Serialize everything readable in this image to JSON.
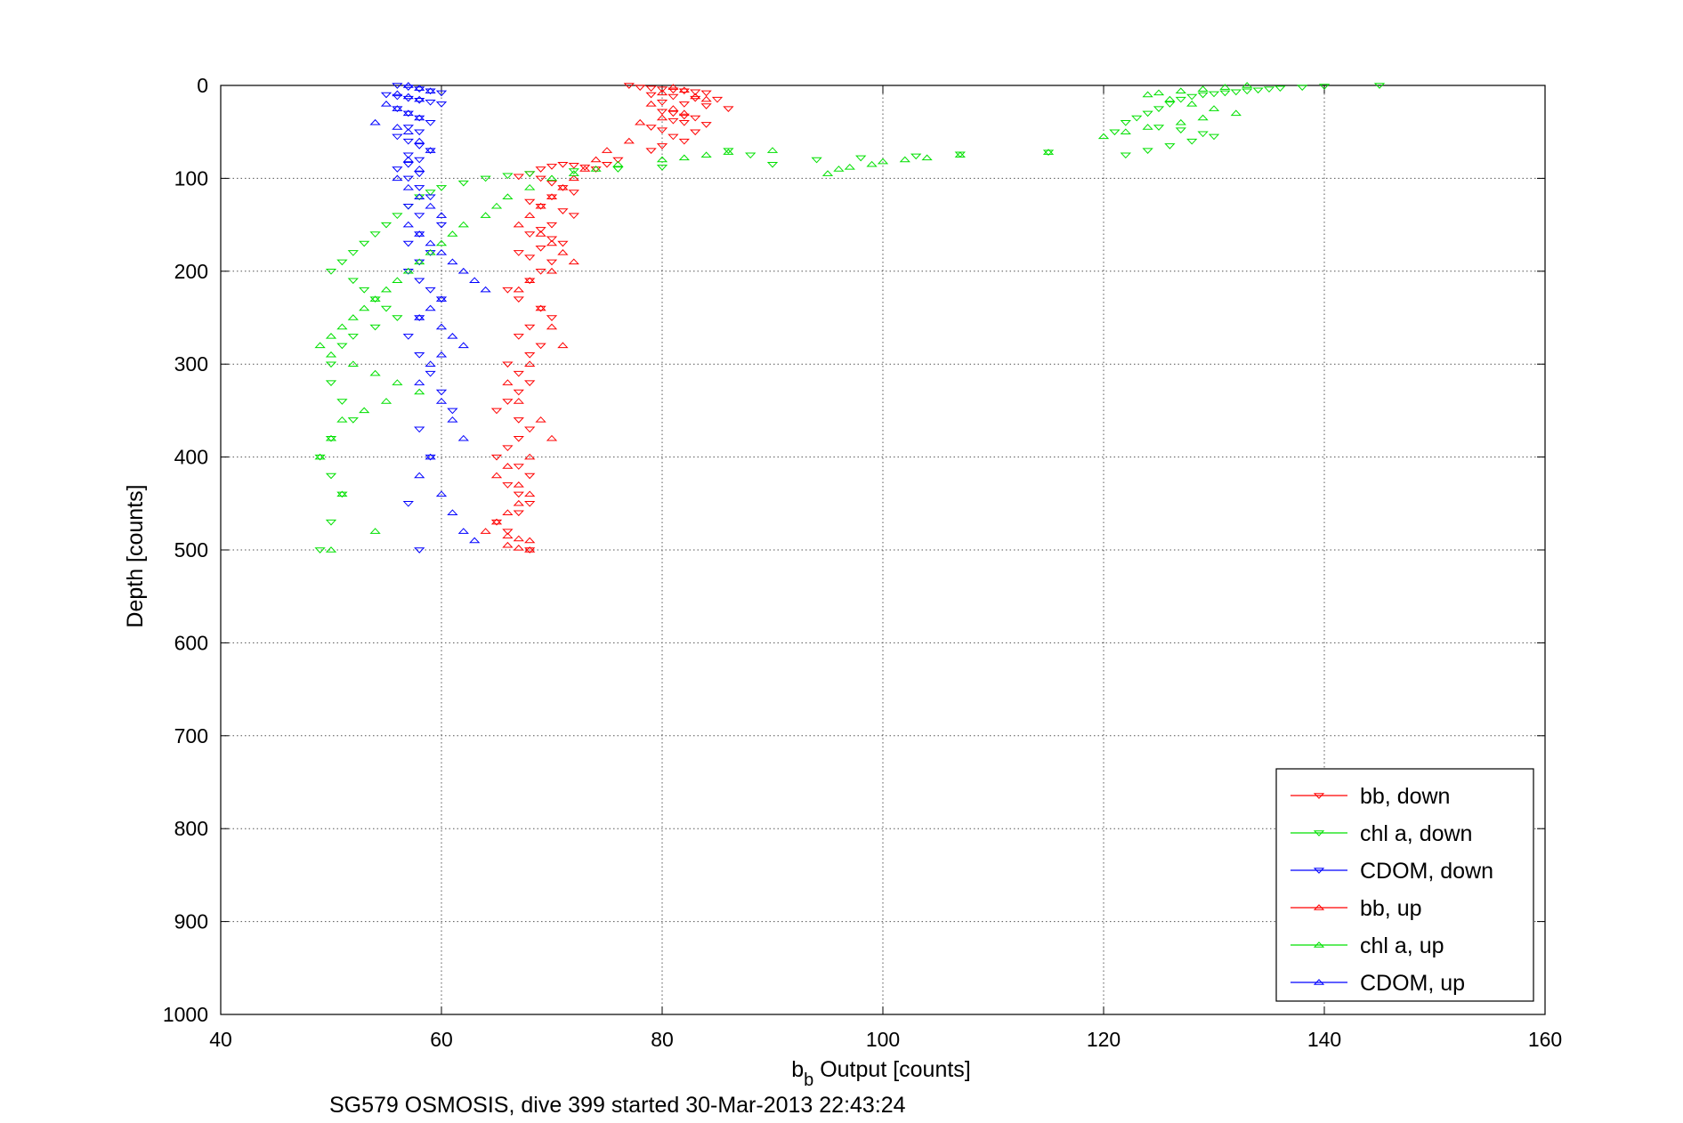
{
  "chart_data": {
    "type": "scatter",
    "xlabel_main": "b",
    "xlabel_sub": "b",
    "xlabel_rest": " Output [counts]",
    "ylabel": "Depth [counts]",
    "caption": "SG579 OSMOSIS, dive 399 started 30-Mar-2013 22:43:24",
    "xlim": [
      40,
      160
    ],
    "ylim": [
      0,
      1000
    ],
    "y_reversed": true,
    "xticks": [
      40,
      60,
      80,
      100,
      120,
      140,
      160
    ],
    "yticks": [
      0,
      100,
      200,
      300,
      400,
      500,
      600,
      700,
      800,
      900,
      1000
    ],
    "grid": true,
    "legend_position": "bottom-right",
    "series": [
      {
        "name": "bb, down",
        "color": "#ff0000",
        "marker": "triangle-down",
        "x": [
          77,
          78,
          79,
          80,
          81,
          82,
          83,
          84,
          79,
          81,
          83,
          85,
          80,
          82,
          84,
          86,
          80,
          81,
          82,
          83,
          81,
          82,
          84,
          79,
          80,
          83,
          81,
          82,
          80,
          79,
          76,
          75,
          74,
          73,
          72,
          71,
          70,
          69,
          68,
          67,
          69,
          70,
          71,
          72,
          70,
          68,
          69,
          71,
          72,
          70,
          69,
          68,
          70,
          71,
          69,
          67,
          68,
          70,
          69,
          68,
          66,
          67,
          69,
          70,
          68,
          67,
          69,
          68,
          66,
          67,
          68,
          67,
          66,
          65,
          67,
          68,
          67,
          66,
          65,
          67,
          68,
          66,
          67,
          68,
          67,
          65,
          66,
          68
        ],
        "y": [
          0,
          2,
          3,
          4,
          5,
          6,
          7,
          8,
          10,
          12,
          14,
          15,
          18,
          20,
          22,
          25,
          28,
          30,
          33,
          35,
          38,
          40,
          42,
          45,
          48,
          50,
          55,
          60,
          65,
          70,
          80,
          85,
          90,
          88,
          86,
          85,
          87,
          90,
          95,
          98,
          100,
          105,
          110,
          115,
          120,
          125,
          130,
          135,
          140,
          150,
          155,
          160,
          165,
          170,
          175,
          180,
          185,
          190,
          200,
          210,
          220,
          230,
          240,
          250,
          260,
          270,
          280,
          290,
          300,
          310,
          320,
          330,
          340,
          350,
          360,
          370,
          380,
          390,
          400,
          410,
          420,
          430,
          440,
          450,
          460,
          470,
          480,
          500
        ]
      },
      {
        "name": "chl a, down",
        "color": "#00e000",
        "marker": "triangle-down",
        "x": [
          145,
          140,
          138,
          136,
          135,
          134,
          133,
          132,
          131,
          130,
          129,
          128,
          127,
          126,
          125,
          124,
          123,
          122,
          121,
          130,
          128,
          126,
          124,
          122,
          125,
          127,
          129,
          115,
          107,
          103,
          98,
          94,
          90,
          88,
          86,
          80,
          76,
          72,
          68,
          66,
          64,
          62,
          60,
          59,
          58,
          57,
          56,
          55,
          54,
          53,
          52,
          51,
          50,
          52,
          53,
          54,
          55,
          56,
          54,
          52,
          51,
          50,
          50,
          51,
          52,
          50,
          49,
          50,
          51,
          50,
          49
        ],
        "y": [
          0,
          1,
          2,
          3,
          4,
          5,
          6,
          7,
          8,
          9,
          10,
          12,
          15,
          20,
          25,
          30,
          35,
          40,
          50,
          55,
          60,
          65,
          70,
          75,
          45,
          48,
          52,
          72,
          74,
          76,
          78,
          80,
          85,
          75,
          70,
          88,
          90,
          92,
          95,
          97,
          100,
          105,
          110,
          115,
          120,
          130,
          140,
          150,
          160,
          170,
          180,
          190,
          200,
          210,
          220,
          230,
          240,
          250,
          260,
          270,
          280,
          300,
          320,
          340,
          360,
          380,
          400,
          420,
          440,
          470,
          500
        ]
      },
      {
        "name": "CDOM, down",
        "color": "#0000ff",
        "marker": "triangle-down",
        "x": [
          56,
          57,
          58,
          59,
          60,
          55,
          56,
          57,
          58,
          59,
          60,
          56,
          57,
          58,
          59,
          57,
          58,
          56,
          57,
          58,
          59,
          57,
          58,
          57,
          56,
          58,
          57,
          58,
          59,
          57,
          58,
          60,
          58,
          57,
          59,
          58,
          57,
          58,
          59,
          60,
          58,
          57,
          58,
          59,
          60,
          61,
          58,
          59,
          57,
          58
        ],
        "y": [
          0,
          2,
          4,
          6,
          8,
          10,
          12,
          14,
          16,
          18,
          20,
          25,
          30,
          35,
          40,
          45,
          50,
          55,
          60,
          65,
          70,
          75,
          80,
          85,
          90,
          95,
          100,
          110,
          120,
          130,
          140,
          150,
          160,
          170,
          180,
          190,
          200,
          210,
          220,
          230,
          250,
          270,
          290,
          310,
          330,
          350,
          370,
          400,
          450,
          500
        ]
      },
      {
        "name": "bb, up",
        "color": "#ff0000",
        "marker": "triangle-up",
        "x": [
          81,
          82,
          80,
          83,
          84,
          79,
          81,
          82,
          80,
          78,
          77,
          75,
          74,
          73,
          72,
          71,
          70,
          69,
          68,
          67,
          69,
          70,
          71,
          72,
          70,
          68,
          67,
          69,
          70,
          71,
          68,
          66,
          67,
          69,
          70,
          68,
          66,
          65,
          67,
          68,
          67,
          66,
          65,
          64,
          66,
          67,
          68,
          66,
          67,
          68
        ],
        "y": [
          2,
          5,
          8,
          12,
          15,
          20,
          25,
          30,
          35,
          40,
          60,
          70,
          80,
          90,
          100,
          110,
          120,
          130,
          140,
          150,
          160,
          170,
          180,
          190,
          200,
          210,
          220,
          240,
          260,
          280,
          300,
          320,
          340,
          360,
          380,
          400,
          410,
          420,
          430,
          440,
          450,
          460,
          470,
          480,
          485,
          488,
          490,
          495,
          498,
          500
        ]
      },
      {
        "name": "chl a, up",
        "color": "#00e000",
        "marker": "triangle-up",
        "x": [
          133,
          131,
          129,
          127,
          125,
          124,
          126,
          128,
          130,
          132,
          129,
          127,
          124,
          122,
          120,
          115,
          107,
          104,
          102,
          100,
          99,
          97,
          96,
          95,
          90,
          86,
          84,
          82,
          80,
          76,
          74,
          72,
          70,
          68,
          66,
          65,
          64,
          62,
          61,
          60,
          59,
          58,
          57,
          56,
          55,
          54,
          53,
          52,
          51,
          50,
          49,
          50,
          52,
          54,
          56,
          58,
          55,
          53,
          51,
          50,
          49,
          51,
          54,
          50
        ],
        "y": [
          0,
          2,
          4,
          6,
          8,
          10,
          15,
          20,
          25,
          30,
          35,
          40,
          45,
          50,
          55,
          72,
          75,
          78,
          80,
          82,
          85,
          88,
          90,
          95,
          70,
          72,
          75,
          78,
          80,
          85,
          90,
          95,
          100,
          110,
          120,
          130,
          140,
          150,
          160,
          170,
          180,
          190,
          200,
          210,
          220,
          230,
          240,
          250,
          260,
          270,
          280,
          290,
          300,
          310,
          320,
          330,
          340,
          350,
          360,
          380,
          400,
          440,
          480,
          500
        ]
      },
      {
        "name": "CDOM, up",
        "color": "#0000ff",
        "marker": "triangle-up",
        "x": [
          57,
          58,
          59,
          56,
          57,
          58,
          55,
          56,
          57,
          58,
          54,
          56,
          57,
          58,
          59,
          57,
          58,
          56,
          57,
          58,
          59,
          60,
          57,
          58,
          59,
          60,
          61,
          62,
          63,
          64,
          60,
          59,
          58,
          60,
          61,
          62,
          60,
          59,
          58,
          60,
          61,
          62,
          59,
          58,
          60,
          61,
          62,
          63
        ],
        "y": [
          0,
          3,
          6,
          9,
          12,
          15,
          20,
          25,
          30,
          35,
          40,
          45,
          50,
          60,
          70,
          80,
          90,
          100,
          110,
          120,
          130,
          140,
          150,
          160,
          170,
          180,
          190,
          200,
          210,
          220,
          230,
          240,
          250,
          260,
          270,
          280,
          290,
          300,
          320,
          340,
          360,
          380,
          400,
          420,
          440,
          460,
          480,
          490
        ]
      }
    ]
  }
}
